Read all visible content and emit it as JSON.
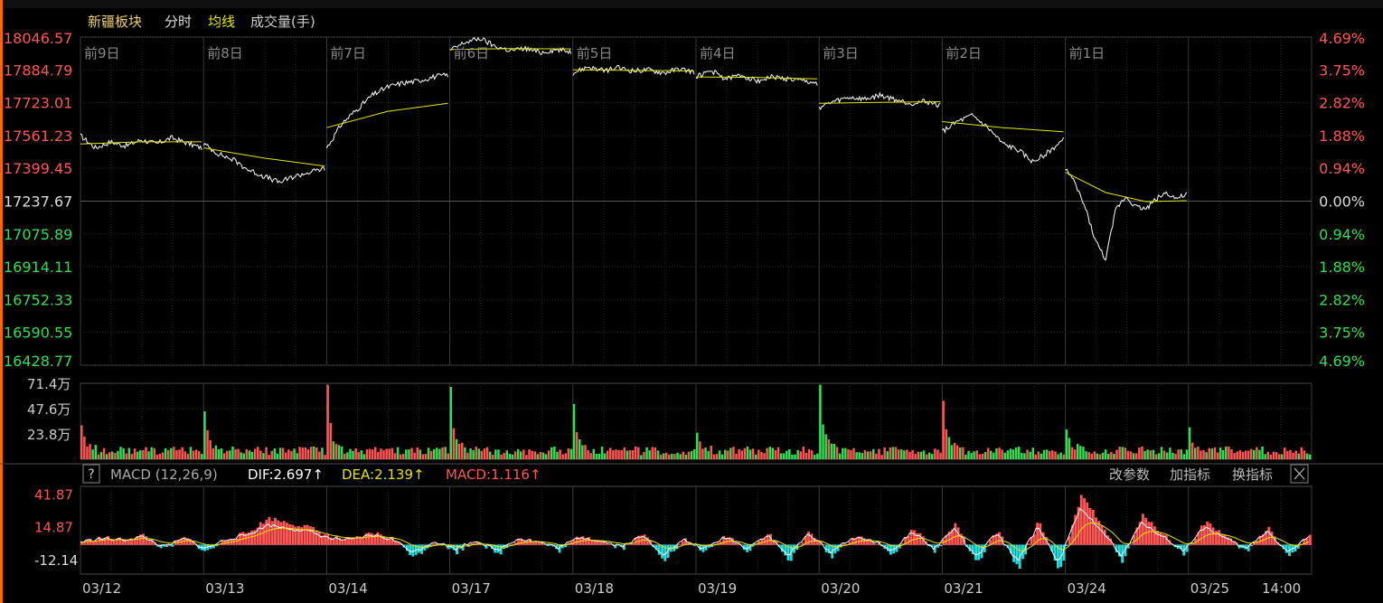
{
  "header": {
    "sector_name": "新疆板块",
    "mode_label": "分时",
    "avg_label": "均线",
    "volume_label": "成交量(手)"
  },
  "colors": {
    "price_line": "#ffffff",
    "avg_line": "#e6e600",
    "up": "#ff5555",
    "down": "#33dd55",
    "macd_neg": "#22dddd",
    "grid": "#333333",
    "border": "#4a4a4a",
    "accent": "#ff6600"
  },
  "chart_data": [
    {
      "name_key": "price",
      "type": "line",
      "day_labels": [
        "前9日",
        "前8日",
        "前7日",
        "前6日",
        "前5日",
        "前4日",
        "前3日",
        "前2日",
        "前1日"
      ],
      "left_axis_ticks": [
        "18046.57",
        "17884.79",
        "17723.01",
        "17561.23",
        "17399.45",
        "17237.67",
        "17075.89",
        "16914.11",
        "16752.33",
        "16590.55",
        "16428.77"
      ],
      "right_axis_ticks": [
        "4.69%",
        "3.75%",
        "2.82%",
        "1.88%",
        "0.94%",
        "0.00%",
        "0.94%",
        "1.88%",
        "2.82%",
        "3.75%",
        "4.69%"
      ],
      "reference_price": 17237.67,
      "ylim": [
        16428.77,
        18046.57
      ],
      "days": [
        {
          "o": 17560,
          "pts": [
            17560,
            17500,
            17530,
            17510,
            17540,
            17520,
            17550,
            17525,
            17500
          ],
          "avg": [
            17520,
            17530,
            17530
          ]
        },
        {
          "o": 17520,
          "pts": [
            17520,
            17470,
            17440,
            17390,
            17360,
            17330,
            17360,
            17380,
            17400
          ],
          "avg": [
            17500,
            17450,
            17410
          ]
        },
        {
          "o": 17500,
          "pts": [
            17500,
            17620,
            17690,
            17760,
            17800,
            17820,
            17830,
            17850,
            17860
          ],
          "avg": [
            17600,
            17680,
            17720
          ]
        },
        {
          "o": 17980,
          "pts": [
            17980,
            18020,
            18040,
            18000,
            17980,
            17990,
            17970,
            17985,
            17975
          ],
          "avg": [
            17985,
            17990,
            17988
          ]
        },
        {
          "o": 17870,
          "pts": [
            17870,
            17900,
            17880,
            17895,
            17880,
            17885,
            17870,
            17890,
            17875
          ],
          "avg": [
            17885,
            17882,
            17880
          ]
        },
        {
          "o": 17850,
          "pts": [
            17850,
            17880,
            17840,
            17860,
            17830,
            17850,
            17840,
            17830,
            17820
          ],
          "avg": [
            17850,
            17848,
            17840
          ]
        },
        {
          "o": 17700,
          "pts": [
            17700,
            17730,
            17750,
            17740,
            17760,
            17740,
            17720,
            17730,
            17710
          ],
          "avg": [
            17720,
            17725,
            17728
          ]
        },
        {
          "o": 17580,
          "pts": [
            17580,
            17630,
            17660,
            17600,
            17520,
            17490,
            17430,
            17480,
            17540
          ],
          "avg": [
            17630,
            17600,
            17580
          ]
        },
        {
          "o": 17400,
          "pts": [
            17400,
            17320,
            17200,
            17040,
            16950,
            17200,
            17260,
            17210,
            17200,
            17250,
            17280,
            17250,
            17270
          ],
          "avg": [
            17380,
            17280,
            17235,
            17240
          ]
        }
      ]
    },
    {
      "name_key": "volume",
      "type": "bar",
      "axis_ticks": [
        "71.4万",
        "47.6万",
        "23.8万"
      ],
      "ylim": [
        0,
        71.4
      ],
      "day_open_spikes": [
        32,
        45,
        70,
        68,
        52,
        25,
        70,
        55,
        28,
        30
      ],
      "base_level": 4
    },
    {
      "name_key": "macd",
      "type": "line+bar",
      "indicator_name": "MACD (12,26,9)",
      "dif_label": "DIF:2.697↑",
      "dea_label": "DEA:2.139↑",
      "macd_label": "MACD:1.116↑",
      "buttons": [
        "改参数",
        "加指标",
        "换指标"
      ],
      "axis_ticks": [
        "41.87",
        "14.87",
        "-12.14"
      ],
      "ylim": [
        -24,
        48
      ],
      "macd_keypoints": [
        2,
        6,
        4,
        8,
        -4,
        6,
        -6,
        5,
        10,
        22,
        18,
        14,
        6,
        4,
        10,
        5,
        -10,
        3,
        -6,
        4,
        -8,
        6,
        2,
        -5,
        8,
        3,
        -3,
        9,
        -12,
        4,
        -6,
        8,
        -5,
        10,
        -14,
        12,
        -10,
        6,
        4,
        -8,
        14,
        -6,
        18,
        -16,
        12,
        -20,
        20,
        -22,
        40,
        18,
        -15,
        25,
        8,
        -8,
        20,
        6,
        -6,
        15,
        -10,
        8
      ],
      "x_dates": [
        "03/12",
        "03/13",
        "03/14",
        "03/17",
        "03/18",
        "03/19",
        "03/20",
        "03/21",
        "03/24",
        "03/25",
        "14:00"
      ]
    }
  ]
}
